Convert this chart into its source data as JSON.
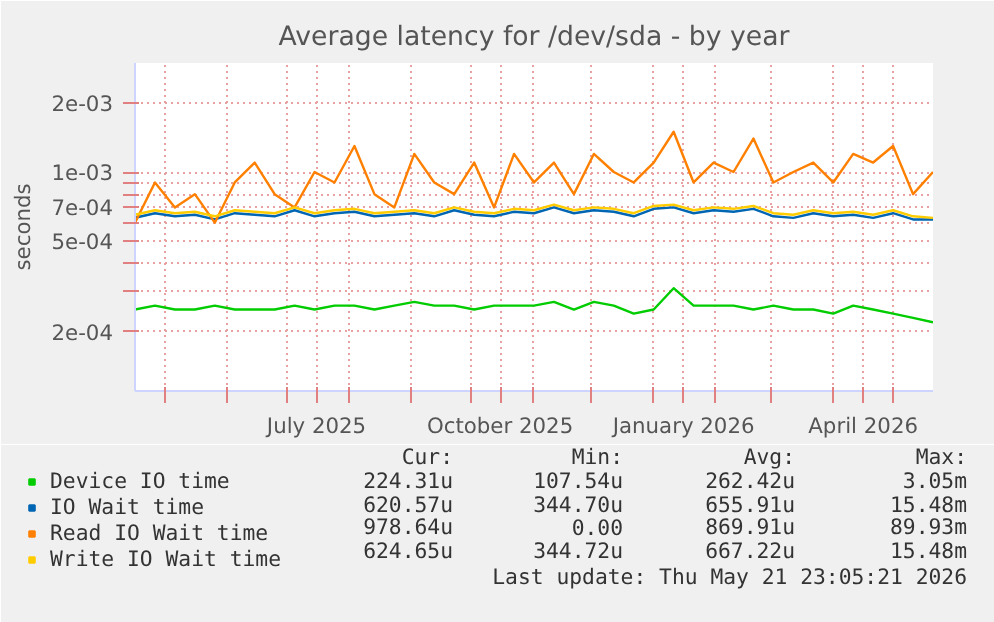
{
  "chart_data": {
    "type": "line",
    "title": "Average latency for /dev/sda - by year",
    "ylabel": "seconds",
    "log": true,
    "grid": true,
    "legend": "bottom",
    "xlim": [
      "2025-04-16",
      "2026-05-21"
    ],
    "xticks": [
      {
        "value": "2025-05-01",
        "label": null
      },
      {
        "value": "2025-06-01",
        "label": null
      },
      {
        "value": "2025-07-01",
        "label": null
      },
      {
        "value": "2025-07-16",
        "label": "July 2025"
      },
      {
        "value": "2025-08-01",
        "label": null
      },
      {
        "value": "2025-09-01",
        "label": null
      },
      {
        "value": "2025-10-01",
        "label": null
      },
      {
        "value": "2025-10-16",
        "label": "October 2025"
      },
      {
        "value": "2025-11-01",
        "label": null
      },
      {
        "value": "2025-12-01",
        "label": null
      },
      {
        "value": "2026-01-01",
        "label": null
      },
      {
        "value": "2026-01-16",
        "label": "January 2026"
      },
      {
        "value": "2026-02-01",
        "label": null
      },
      {
        "value": "2026-03-01",
        "label": null
      },
      {
        "value": "2026-04-01",
        "label": null
      },
      {
        "value": "2026-04-16",
        "label": "April 2026"
      },
      {
        "value": "2026-05-01",
        "label": null
      }
    ],
    "ylim": [
      0.00011,
      0.003
    ],
    "yticks": [
      {
        "value": 0.0002,
        "label": "2e-04"
      },
      {
        "value": 0.0003,
        "label": null
      },
      {
        "value": 0.0004,
        "label": null
      },
      {
        "value": 0.0005,
        "label": "5e-04"
      },
      {
        "value": 0.0006,
        "label": null
      },
      {
        "value": 0.0007,
        "label": "7e-04"
      },
      {
        "value": 0.0008,
        "label": null
      },
      {
        "value": 0.0009,
        "label": null
      },
      {
        "value": 0.001,
        "label": "1e-03"
      },
      {
        "value": 0.002,
        "label": "2e-03"
      }
    ],
    "x": [
      "2025-04-16",
      "2025-04-26",
      "2025-05-06",
      "2025-05-16",
      "2025-05-26",
      "2025-06-05",
      "2025-06-15",
      "2025-06-25",
      "2025-07-05",
      "2025-07-15",
      "2025-07-25",
      "2025-08-04",
      "2025-08-14",
      "2025-08-24",
      "2025-09-03",
      "2025-09-13",
      "2025-09-23",
      "2025-10-03",
      "2025-10-13",
      "2025-10-23",
      "2025-11-02",
      "2025-11-12",
      "2025-11-22",
      "2025-12-02",
      "2025-12-12",
      "2025-12-22",
      "2026-01-01",
      "2026-01-11",
      "2026-01-21",
      "2026-01-31",
      "2026-02-10",
      "2026-02-20",
      "2026-03-02",
      "2026-03-12",
      "2026-03-22",
      "2026-04-01",
      "2026-04-11",
      "2026-04-21",
      "2026-05-01",
      "2026-05-11",
      "2026-05-21"
    ],
    "series": [
      {
        "name": "Device IO time",
        "color": "#00cc00",
        "values": [
          0.00025,
          0.00026,
          0.00025,
          0.00025,
          0.00026,
          0.00025,
          0.00025,
          0.00025,
          0.00026,
          0.00025,
          0.00026,
          0.00026,
          0.00025,
          0.00026,
          0.00027,
          0.00026,
          0.00026,
          0.00025,
          0.00026,
          0.00026,
          0.00026,
          0.00027,
          0.00025,
          0.00027,
          0.00026,
          0.00024,
          0.00025,
          0.00031,
          0.00026,
          0.00026,
          0.00026,
          0.00025,
          0.00026,
          0.00025,
          0.00025,
          0.00024,
          0.00026,
          0.00025,
          0.00024,
          0.00023,
          0.00022
        ]
      },
      {
        "name": "IO Wait time",
        "color": "#0066b3",
        "values": [
          0.00063,
          0.00066,
          0.00064,
          0.00065,
          0.00062,
          0.00066,
          0.00065,
          0.00064,
          0.00068,
          0.00064,
          0.00066,
          0.00067,
          0.00064,
          0.00065,
          0.00066,
          0.00064,
          0.00068,
          0.00065,
          0.00064,
          0.00067,
          0.00066,
          0.0007,
          0.00066,
          0.00068,
          0.00067,
          0.00064,
          0.00069,
          0.0007,
          0.00066,
          0.00068,
          0.00067,
          0.00069,
          0.00064,
          0.00063,
          0.00066,
          0.00064,
          0.00065,
          0.00063,
          0.00066,
          0.00062,
          0.00062
        ]
      },
      {
        "name": "Read IO Wait time",
        "color": "#ff8000",
        "values": [
          0.0006,
          0.0009,
          0.0007,
          0.0008,
          0.0006,
          0.0009,
          0.0011,
          0.0008,
          0.0007,
          0.001,
          0.0009,
          0.0013,
          0.0008,
          0.0007,
          0.0012,
          0.0009,
          0.0008,
          0.0011,
          0.0007,
          0.0012,
          0.0009,
          0.0011,
          0.0008,
          0.0012,
          0.001,
          0.0009,
          0.0011,
          0.0015,
          0.0009,
          0.0011,
          0.001,
          0.0014,
          0.0009,
          0.001,
          0.0011,
          0.0009,
          0.0012,
          0.0011,
          0.0013,
          0.0008,
          0.001
        ]
      },
      {
        "name": "Write IO Wait time",
        "color": "#ffcc00",
        "values": [
          0.00065,
          0.00068,
          0.00066,
          0.00067,
          0.00064,
          0.00068,
          0.00067,
          0.00066,
          0.0007,
          0.00066,
          0.00068,
          0.00069,
          0.00066,
          0.00067,
          0.00068,
          0.00066,
          0.0007,
          0.00067,
          0.00066,
          0.00069,
          0.00068,
          0.00072,
          0.00068,
          0.0007,
          0.00069,
          0.00066,
          0.00071,
          0.00072,
          0.00068,
          0.0007,
          0.00069,
          0.00071,
          0.00066,
          0.00065,
          0.00068,
          0.00066,
          0.00067,
          0.00065,
          0.00068,
          0.00064,
          0.00063
        ]
      }
    ],
    "annotations": [
      "Cur:",
      "Min:",
      "Avg:",
      "Max:",
      "224.31u",
      "107.54u",
      "262.42u",
      "3.05m",
      "620.57u",
      "344.70u",
      "655.91u",
      "15.48m",
      "978.64u",
      "0.00",
      "869.91u",
      "89.93m",
      "624.65u",
      "344.72u",
      "667.22u",
      "15.48m",
      "Last update: Thu May 21 23:05:21 2026"
    ]
  }
}
